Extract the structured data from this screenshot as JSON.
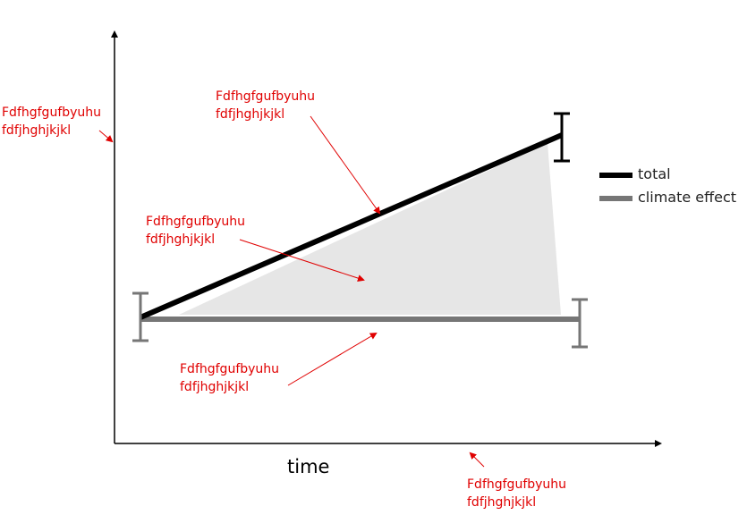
{
  "colors": {
    "total": "#000000",
    "climate": "#767676",
    "area": "#e6e6e6",
    "annotation": "#e00000",
    "axis": "#000000"
  },
  "axes": {
    "x_label": "time"
  },
  "legend": {
    "items": [
      {
        "label": "total",
        "color": "#000000"
      },
      {
        "label": "climate effect",
        "color": "#767676"
      }
    ]
  },
  "annotations": [
    {
      "line1": "Fdfhgfgufbyuhu",
      "line2": "fdfjhghjkjkl"
    },
    {
      "line1": "Fdfhgfgufbyuhu",
      "line2": "fdfjhghjkjkl"
    },
    {
      "line1": "Fdfhgfgufbyuhu",
      "line2": "fdfjhghjkjkl"
    },
    {
      "line1": "Fdfhgfgufbyuhu",
      "line2": "fdfjhghjkjkl"
    },
    {
      "line1": "Fdfhgfgufbyuhu",
      "line2": "fdfjhghjkjkl"
    }
  ]
}
